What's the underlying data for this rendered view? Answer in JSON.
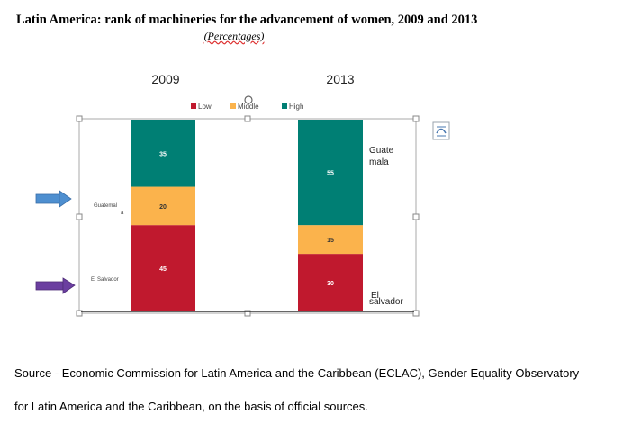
{
  "header": {
    "title": "Latin America: rank of machineries for the advancement of women, 2009 and 2013",
    "subtitle": "(Percentages)"
  },
  "source": {
    "line1": "Source - Economic Commission for Latin America and the Caribbean (ECLAC), Gender Equality Observatory",
    "line2": "for Latin America and the Caribbean, on the basis of official sources."
  },
  "annotations": {
    "guatemala_left_line1": "Guatemal",
    "guatemala_left_line2": "a",
    "el_salvador_left": "El Salvador",
    "guatemala_right_line1": "Guate",
    "guatemala_right_line2": "mala",
    "el_salvador_right_line1": "El",
    "el_salvador_right_line2": "salvador"
  },
  "colors": {
    "low": "#c0192e",
    "middle": "#fbb34c",
    "high": "#007f74",
    "arrow_blue": "#4e8fd0",
    "arrow_purple": "#6b3fa0"
  },
  "chart_data": {
    "type": "bar",
    "stacked": true,
    "categories": [
      "2009",
      "2013"
    ],
    "series": [
      {
        "name": "Low",
        "values": [
          45,
          30
        ]
      },
      {
        "name": "Middle",
        "values": [
          20,
          15
        ]
      },
      {
        "name": "High",
        "values": [
          35,
          55
        ]
      }
    ],
    "ylim": [
      0,
      100
    ],
    "legend": "top",
    "grid": false
  }
}
